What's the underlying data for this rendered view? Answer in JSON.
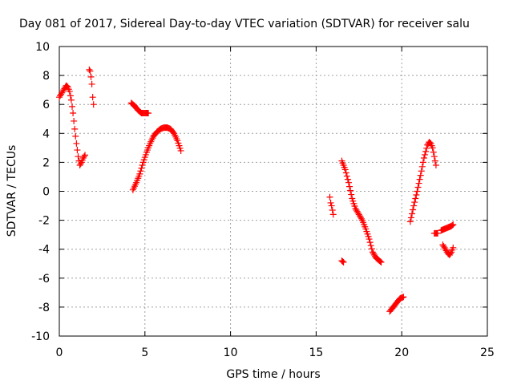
{
  "chart_data": {
    "type": "scatter",
    "title": "Day 081 of 2017, Sidereal Day-to-day VTEC variation (SDTVAR) for receiver salu",
    "xlabel": "GPS time / hours",
    "ylabel": "SDTVAR / TECUs",
    "xlim": [
      0,
      25
    ],
    "ylim": [
      -10,
      10
    ],
    "xticks": [
      0,
      5,
      10,
      15,
      20,
      25
    ],
    "yticks": [
      -10,
      -8,
      -6,
      -4,
      -2,
      0,
      2,
      4,
      6,
      8,
      10
    ],
    "grid": true,
    "marker": "+",
    "color": "#ff0000",
    "segments": [
      {
        "x": [
          0.0,
          0.1,
          0.2,
          0.3,
          0.4,
          0.5,
          0.6,
          0.7,
          0.8,
          0.9,
          1.0,
          1.1,
          1.2,
          1.3,
          1.4,
          1.5
        ],
        "y": [
          6.5,
          6.7,
          6.9,
          7.1,
          7.3,
          7.2,
          6.9,
          6.3,
          5.4,
          4.3,
          3.3,
          2.4,
          1.8,
          2.0,
          2.3,
          2.5
        ]
      },
      {
        "x": [
          1.75,
          1.8,
          1.85,
          1.9,
          1.95,
          2.0
        ],
        "y": [
          8.4,
          8.3,
          7.9,
          7.4,
          6.5,
          6.0
        ]
      },
      {
        "x": [
          4.2,
          4.4,
          4.6,
          4.8,
          5.0,
          5.2
        ],
        "y": [
          6.1,
          5.9,
          5.6,
          5.4,
          5.4,
          5.4
        ]
      },
      {
        "x": [
          4.3,
          4.5,
          4.7,
          4.9,
          5.1,
          5.3,
          5.5,
          5.7,
          5.9,
          6.1,
          6.3,
          6.5,
          6.7,
          6.9,
          7.1
        ],
        "y": [
          0.1,
          0.6,
          1.2,
          2.0,
          2.7,
          3.3,
          3.8,
          4.1,
          4.3,
          4.4,
          4.4,
          4.3,
          4.0,
          3.5,
          2.8
        ]
      },
      {
        "x": [
          15.8,
          15.85,
          15.9,
          15.95,
          16.0
        ],
        "y": [
          -0.4,
          -0.8,
          -1.0,
          -1.3,
          -1.6
        ]
      },
      {
        "x": [
          16.5,
          16.6
        ],
        "y": [
          -4.8,
          -4.9
        ]
      },
      {
        "x": [
          16.5,
          16.7,
          16.9,
          17.1,
          17.3,
          17.5,
          17.7,
          17.9,
          18.1,
          18.3,
          18.5,
          18.7,
          18.8
        ],
        "y": [
          2.1,
          1.5,
          0.6,
          -0.5,
          -1.2,
          -1.6,
          -2.0,
          -2.6,
          -3.3,
          -4.2,
          -4.6,
          -4.8,
          -4.9
        ]
      },
      {
        "x": [
          19.3,
          19.5,
          19.7,
          19.9,
          20.1
        ],
        "y": [
          -8.3,
          -8.0,
          -7.7,
          -7.4,
          -7.3
        ]
      },
      {
        "x": [
          20.5,
          20.7,
          20.9,
          21.1,
          21.3,
          21.5,
          21.6,
          21.7,
          21.8,
          21.9,
          22.0
        ],
        "y": [
          -2.1,
          -1.0,
          0.0,
          1.1,
          2.3,
          3.2,
          3.4,
          3.3,
          3.0,
          2.4,
          1.8
        ]
      },
      {
        "x": [
          21.9,
          22.1
        ],
        "y": [
          -2.9,
          -2.9
        ]
      },
      {
        "x": [
          22.3,
          22.5,
          22.7,
          22.9,
          23.0
        ],
        "y": [
          -2.7,
          -2.6,
          -2.5,
          -2.4,
          -2.3
        ]
      },
      {
        "x": [
          22.4,
          22.5,
          22.6,
          22.7,
          22.8,
          22.9,
          23.0
        ],
        "y": [
          -3.7,
          -3.9,
          -4.1,
          -4.3,
          -4.4,
          -4.2,
          -3.9
        ]
      }
    ]
  }
}
